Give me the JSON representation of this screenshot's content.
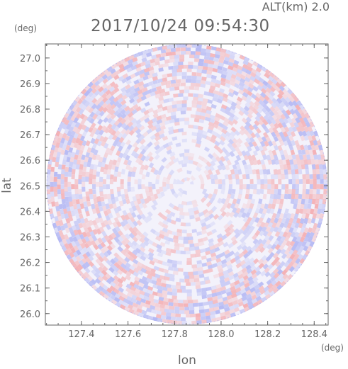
{
  "header": {
    "alt_label": "ALT(km) 2.0",
    "timestamp": "2017/10/24 09:54:30"
  },
  "chart_data": {
    "type": "heatmap",
    "title": "2017/10/24 09:54:30",
    "xlabel": "lon",
    "ylabel": "lat",
    "x_unit": "(deg)",
    "y_unit": "(deg)",
    "xlim": [
      127.245,
      128.46
    ],
    "ylim": [
      25.955,
      27.055
    ],
    "x_ticks": [
      127.4,
      127.6,
      127.8,
      128.0,
      128.2,
      128.4
    ],
    "x_tick_labels": [
      "127.4",
      "127.6",
      "127.8",
      "128.0",
      "128.2",
      "128.4"
    ],
    "y_ticks": [
      26.0,
      26.1,
      26.2,
      26.3,
      26.4,
      26.5,
      26.6,
      26.7,
      26.8,
      26.9,
      27.0
    ],
    "y_tick_labels": [
      "26.0",
      "26.1",
      "26.2",
      "26.3",
      "26.4",
      "26.5",
      "26.6",
      "26.7",
      "26.8",
      "26.9",
      "27.0"
    ],
    "center": {
      "lon": 127.853,
      "lat": 26.506
    },
    "field": "radar scan pattern of alternating positive (red) and negative (blue) values in range/azimuth cells",
    "colors": {
      "positive": "#f4a3a6",
      "negative": "#a9aef2",
      "background": "#ffffff"
    }
  }
}
